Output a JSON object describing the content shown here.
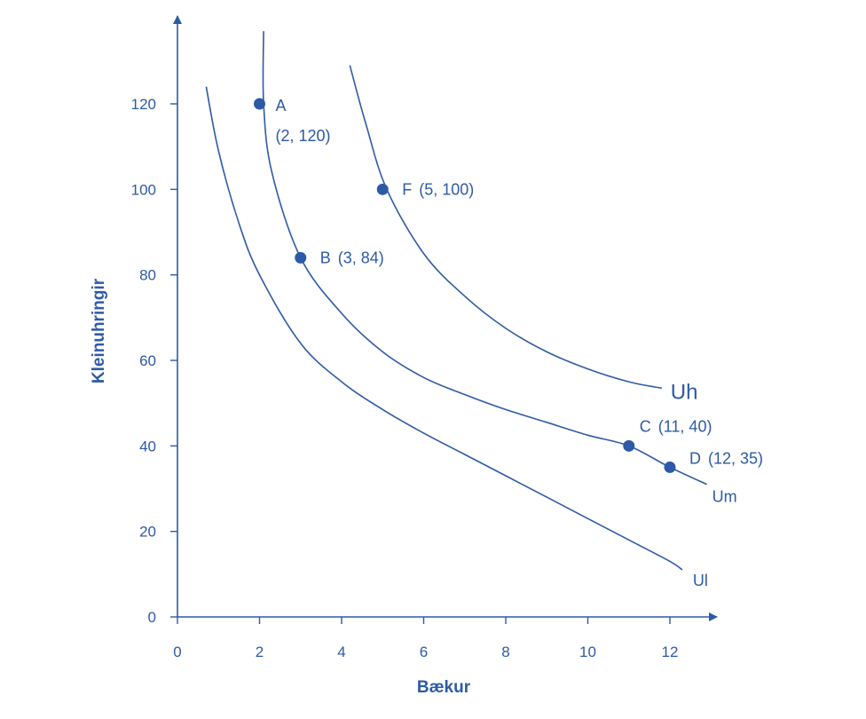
{
  "colors": {
    "accent": "#2d5aa6",
    "background": "#ffffff"
  },
  "chart_data": {
    "type": "line",
    "xlabel": "Bækur",
    "ylabel": "Kleinuhringir",
    "xlim": [
      0,
      13
    ],
    "ylim": [
      0,
      135
    ],
    "x_ticks": [
      "0",
      "2",
      "4",
      "6",
      "8",
      "10",
      "12"
    ],
    "y_ticks": [
      "0",
      "20",
      "40",
      "60",
      "80",
      "100",
      "120"
    ],
    "grid": false,
    "series": [
      {
        "name": "Ul",
        "points": [
          [
            0.7,
            124
          ],
          [
            1,
            109
          ],
          [
            1.5,
            92
          ],
          [
            2,
            80
          ],
          [
            3,
            64
          ],
          [
            4,
            55
          ],
          [
            5,
            48.5
          ],
          [
            6,
            43
          ],
          [
            7,
            38
          ],
          [
            8,
            33
          ],
          [
            9,
            28
          ],
          [
            10,
            23
          ],
          [
            11,
            18
          ],
          [
            12,
            13
          ],
          [
            12.3,
            11
          ]
        ]
      },
      {
        "name": "Um",
        "points": [
          [
            2.1,
            137
          ],
          [
            2.1,
            120
          ],
          [
            2.3,
            104
          ],
          [
            3,
            84
          ],
          [
            4,
            71
          ],
          [
            5,
            62
          ],
          [
            6,
            56
          ],
          [
            7,
            52
          ],
          [
            8,
            48.5
          ],
          [
            9,
            45.5
          ],
          [
            10,
            42.5
          ],
          [
            11,
            40
          ],
          [
            12,
            35
          ],
          [
            12.9,
            31
          ]
        ]
      },
      {
        "name": "Uh",
        "points": [
          [
            4.2,
            129
          ],
          [
            4.6,
            115
          ],
          [
            5.1,
            100
          ],
          [
            6,
            85
          ],
          [
            7,
            75
          ],
          [
            8,
            67.5
          ],
          [
            9,
            62
          ],
          [
            10,
            58
          ],
          [
            11,
            55
          ],
          [
            11.8,
            53.5
          ]
        ]
      }
    ],
    "points": [
      {
        "label": "A",
        "coords": "(2, 120)",
        "x": 2,
        "y": 120
      },
      {
        "label": "B",
        "coords": "(3, 84)",
        "x": 3,
        "y": 84
      },
      {
        "label": "C",
        "coords": "(11, 40)",
        "x": 11,
        "y": 40
      },
      {
        "label": "D",
        "coords": "(12, 35)",
        "x": 12,
        "y": 35
      },
      {
        "label": "F",
        "coords": "(5, 100)",
        "x": 5,
        "y": 100
      }
    ]
  }
}
